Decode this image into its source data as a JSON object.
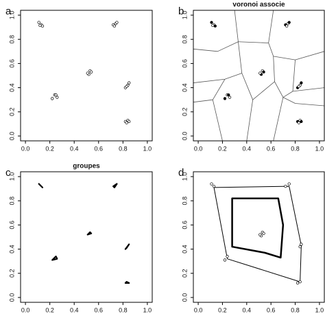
{
  "chart_data": [
    {
      "type": "scatter",
      "label": "a",
      "marker": "open",
      "x": [
        0.11,
        0.13,
        0.14,
        0.12,
        0.72,
        0.74,
        0.75,
        0.73,
        0.52,
        0.53,
        0.54,
        0.51,
        0.22,
        0.24,
        0.25,
        0.26,
        0.82,
        0.84,
        0.85,
        0.83,
        0.82,
        0.84,
        0.85,
        0.83
      ],
      "y": [
        0.94,
        0.92,
        0.91,
        0.915,
        0.92,
        0.93,
        0.94,
        0.91,
        0.51,
        0.54,
        0.53,
        0.52,
        0.31,
        0.34,
        0.34,
        0.32,
        0.4,
        0.42,
        0.44,
        0.41,
        0.12,
        0.13,
        0.12,
        0.11
      ],
      "xlim": [
        -0.04,
        1.04
      ],
      "ylim": [
        -0.04,
        1.04
      ],
      "xticks": [
        {
          "value": 0,
          "label": "0.0"
        },
        0.2,
        0.4,
        0.6,
        0.8,
        {
          "value": 1,
          "label": "1.0"
        }
      ],
      "yticks": [
        {
          "value": 0,
          "label": "0.0"
        },
        0.2,
        0.4,
        0.6,
        0.8,
        {
          "value": 1,
          "label": "1.0"
        }
      ]
    },
    {
      "type": "voronoi",
      "label": "b",
      "title": "voronoi associe",
      "marker": "filled",
      "x": [
        0.11,
        0.13,
        0.14,
        0.12,
        0.72,
        0.74,
        0.75,
        0.73,
        0.52,
        0.53,
        0.54,
        0.51,
        0.22,
        0.24,
        0.25,
        0.26,
        0.82,
        0.84,
        0.85,
        0.83,
        0.82,
        0.84,
        0.85,
        0.83
      ],
      "y": [
        0.94,
        0.92,
        0.91,
        0.915,
        0.92,
        0.93,
        0.94,
        0.91,
        0.51,
        0.54,
        0.53,
        0.52,
        0.31,
        0.34,
        0.34,
        0.32,
        0.4,
        0.42,
        0.44,
        0.41,
        0.12,
        0.13,
        0.12,
        0.11
      ],
      "lines": [
        {
          "x": [
            0.3,
            0.33
          ],
          "y": [
            1.04,
            0.78
          ]
        },
        {
          "x": [
            0.33,
            0.16,
            -0.04
          ],
          "y": [
            0.78,
            0.7,
            0.72
          ]
        },
        {
          "x": [
            0.33,
            0.58,
            0.62
          ],
          "y": [
            0.78,
            0.77,
            1.04
          ]
        },
        {
          "x": [
            0.58,
            0.62,
            0.8,
            1.04
          ],
          "y": [
            0.77,
            0.66,
            0.63,
            0.7
          ]
        },
        {
          "x": [
            0.62,
            0.63
          ],
          "y": [
            0.66,
            0.45
          ]
        },
        {
          "x": [
            0.33,
            0.36,
            0.22,
            -0.04
          ],
          "y": [
            0.78,
            0.52,
            0.47,
            0.44
          ]
        },
        {
          "x": [
            0.36,
            0.45,
            0.63,
            0.7
          ],
          "y": [
            0.52,
            0.3,
            0.45,
            0.32
          ]
        },
        {
          "x": [
            0.45,
            0.4
          ],
          "y": [
            0.3,
            -0.04
          ]
        },
        {
          "x": [
            0.22,
            0.12,
            -0.04
          ],
          "y": [
            0.47,
            0.3,
            0.28
          ]
        },
        {
          "x": [
            0.12,
            0.2
          ],
          "y": [
            0.3,
            -0.04
          ]
        },
        {
          "x": [
            0.7,
            0.62
          ],
          "y": [
            0.32,
            -0.04
          ]
        },
        {
          "x": [
            0.7,
            0.8,
            1.04
          ],
          "y": [
            0.32,
            0.27,
            0.25
          ]
        },
        {
          "x": [
            0.8,
            0.78,
            0.7
          ],
          "y": [
            0.63,
            0.37,
            0.32
          ]
        },
        {
          "x": [
            0.78,
            1.04
          ],
          "y": [
            0.37,
            0.4
          ]
        }
      ],
      "xlim": [
        -0.04,
        1.04
      ],
      "ylim": [
        -0.04,
        1.04
      ],
      "xticks": [
        {
          "value": 0,
          "label": "0.0"
        },
        0.2,
        0.4,
        0.6,
        0.8,
        {
          "value": 1,
          "label": "1.0"
        }
      ],
      "yticks": [
        {
          "value": 0,
          "label": "0.0"
        },
        0.2,
        0.4,
        0.6,
        0.8,
        {
          "value": 1,
          "label": "1.0"
        }
      ]
    },
    {
      "type": "groups",
      "label": "c",
      "title": "groupes",
      "polygons": [
        {
          "x": [
            0.11,
            0.13,
            0.14
          ],
          "y": [
            0.94,
            0.92,
            0.91
          ]
        },
        {
          "x": [
            0.72,
            0.75,
            0.73
          ],
          "y": [
            0.92,
            0.94,
            0.91
          ]
        },
        {
          "x": [
            0.51,
            0.54,
            0.53
          ],
          "y": [
            0.52,
            0.53,
            0.54
          ]
        },
        {
          "x": [
            0.22,
            0.25,
            0.26
          ],
          "y": [
            0.31,
            0.34,
            0.32
          ]
        },
        {
          "x": [
            0.82,
            0.85,
            0.83
          ],
          "y": [
            0.4,
            0.44,
            0.41
          ]
        },
        {
          "x": [
            0.82,
            0.85,
            0.83
          ],
          "y": [
            0.12,
            0.12,
            0.13
          ]
        }
      ],
      "xlim": [
        -0.04,
        1.04
      ],
      "ylim": [
        -0.04,
        1.04
      ],
      "xticks": [
        {
          "value": 0,
          "label": "0.0"
        },
        0.2,
        0.4,
        0.6,
        0.8,
        {
          "value": 1,
          "label": "1.0"
        }
      ],
      "yticks": [
        {
          "value": 0,
          "label": "0.0"
        },
        0.2,
        0.4,
        0.6,
        0.8,
        {
          "value": 1,
          "label": "1.0"
        }
      ]
    },
    {
      "type": "hulls",
      "label": "d",
      "marker": "open",
      "x": [
        0.11,
        0.13,
        0.72,
        0.75,
        0.22,
        0.24,
        0.85,
        0.84,
        0.82,
        0.84,
        0.52,
        0.53,
        0.54,
        0.51
      ],
      "y": [
        0.94,
        0.92,
        0.92,
        0.94,
        0.31,
        0.34,
        0.44,
        0.42,
        0.12,
        0.13,
        0.51,
        0.54,
        0.53,
        0.52
      ],
      "polygons": [
        {
          "x": [
            0.13,
            0.75,
            0.85,
            0.84,
            0.24
          ],
          "y": [
            0.91,
            0.92,
            0.43,
            0.13,
            0.32
          ],
          "width": 1
        },
        {
          "x": [
            0.28,
            0.66,
            0.7,
            0.68,
            0.55,
            0.28
          ],
          "y": [
            0.82,
            0.82,
            0.6,
            0.33,
            0.37,
            0.42
          ],
          "width": 2.5
        }
      ],
      "xlim": [
        -0.04,
        1.04
      ],
      "ylim": [
        -0.04,
        1.04
      ],
      "xticks": [
        {
          "value": 0,
          "label": "0.0"
        },
        0.2,
        0.4,
        0.6,
        0.8,
        {
          "value": 1,
          "label": "1.0"
        }
      ],
      "yticks": [
        {
          "value": 0,
          "label": "0.0"
        },
        0.2,
        0.4,
        0.6,
        0.8,
        {
          "value": 1,
          "label": "1.0"
        }
      ]
    }
  ]
}
